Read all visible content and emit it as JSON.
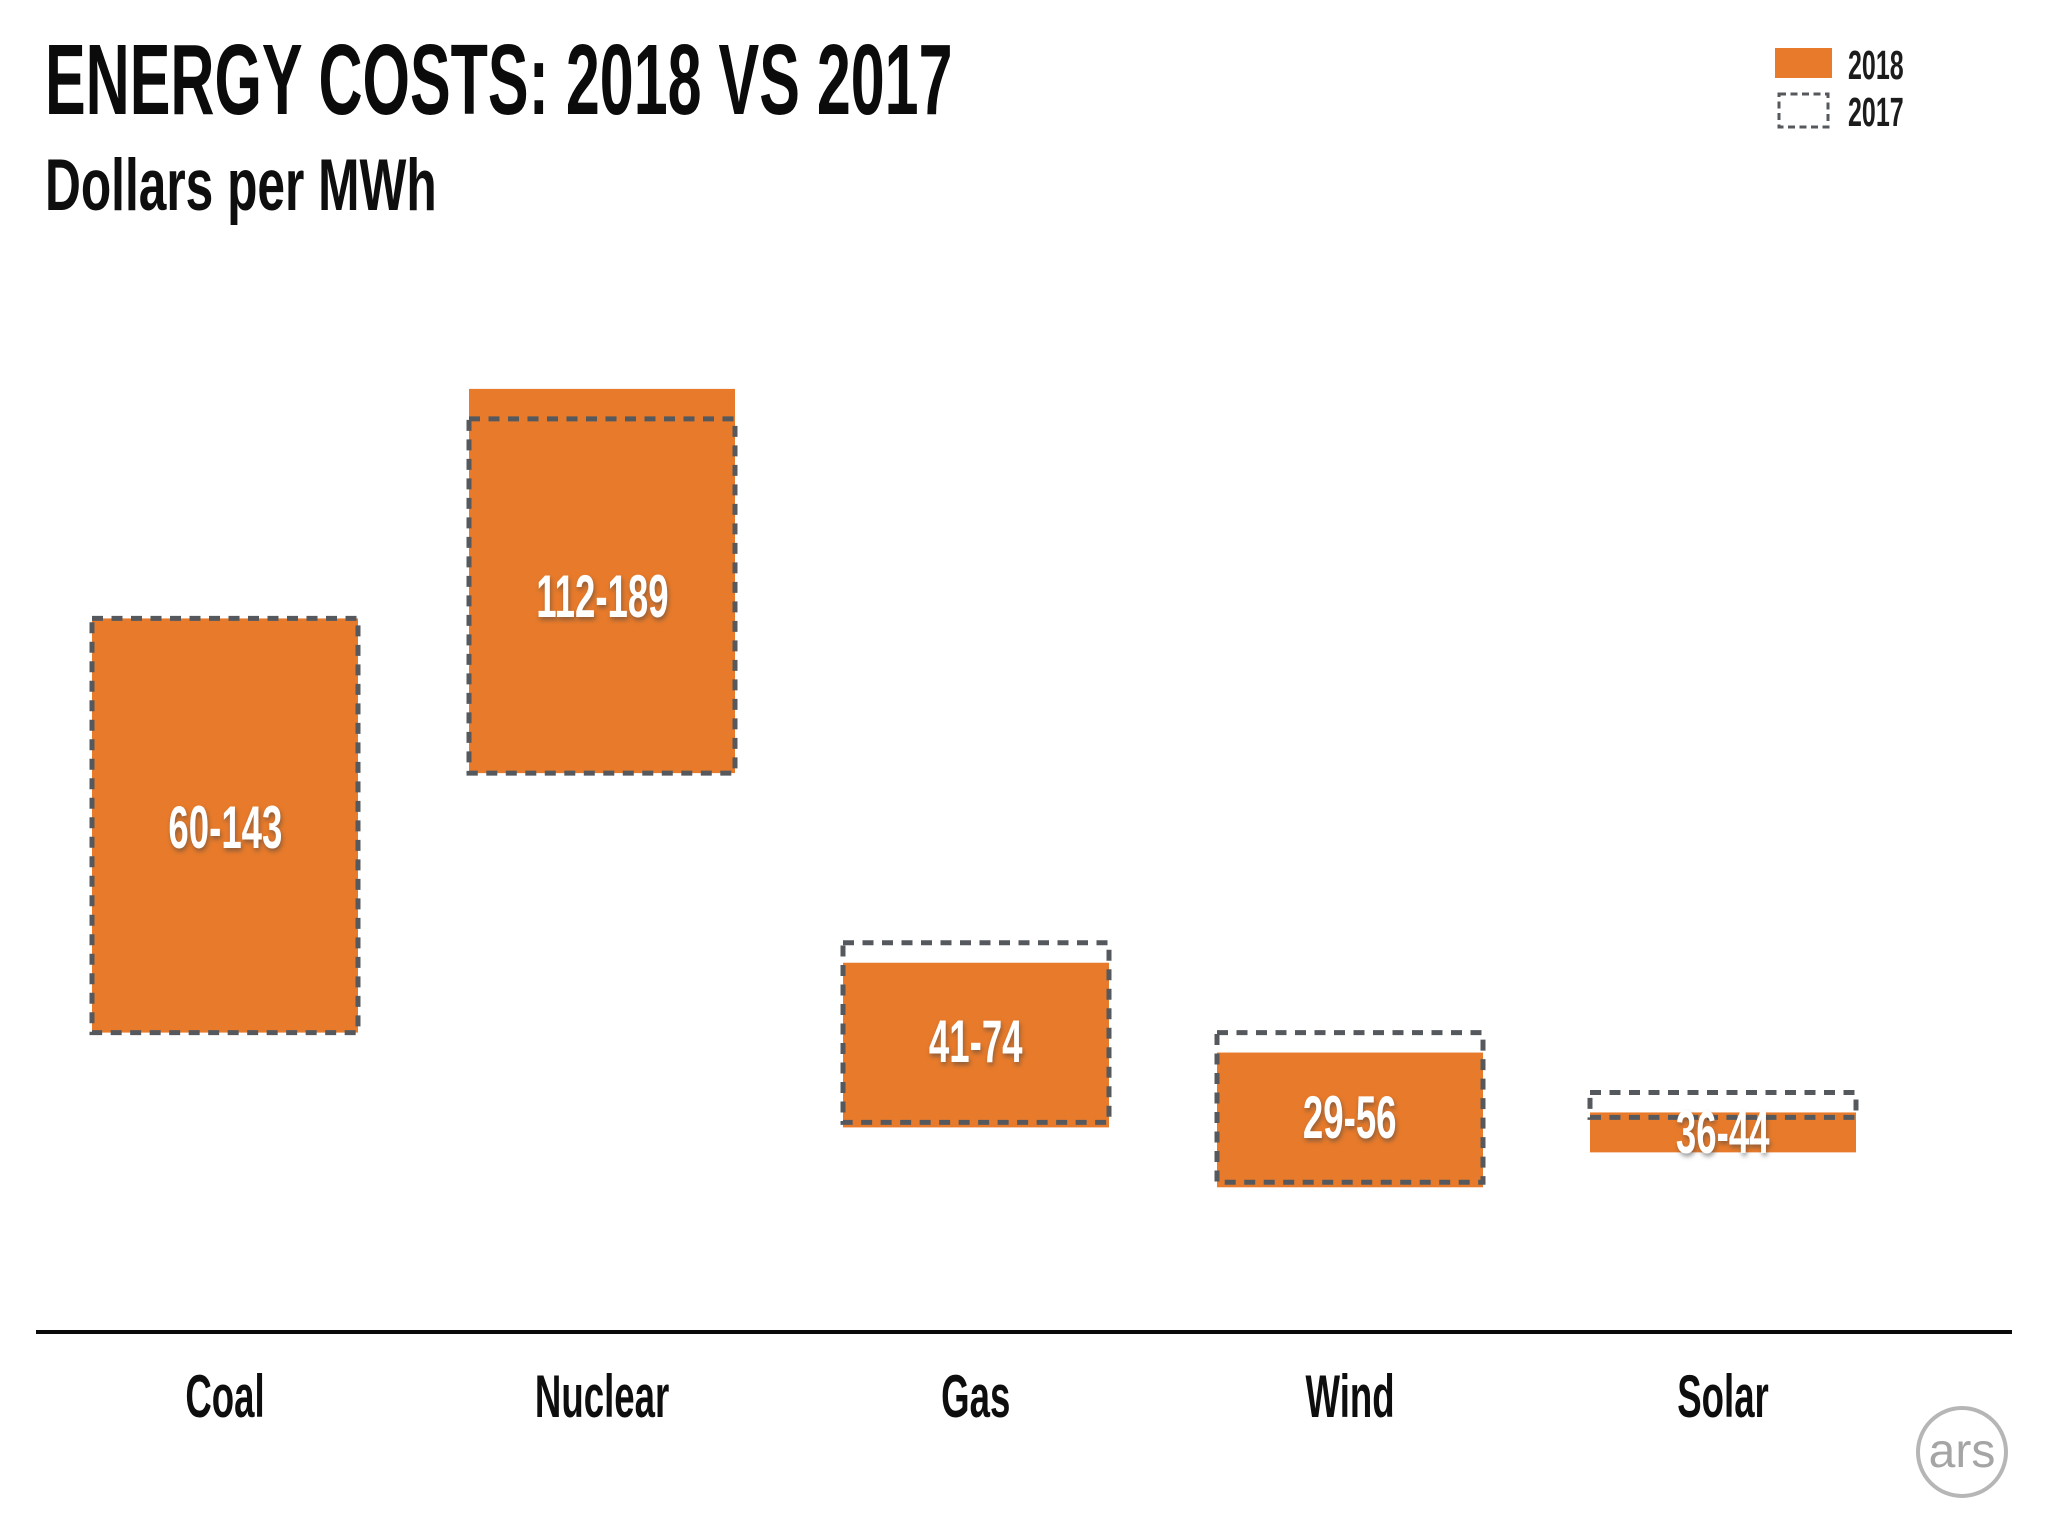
{
  "header": {
    "title": "ENERGY COSTS: 2018 VS 2017",
    "subtitle": "Dollars per MWh"
  },
  "legend": {
    "position": "top-right",
    "items": [
      {
        "label": "2018",
        "style": "filled"
      },
      {
        "label": "2017",
        "style": "dashed"
      }
    ]
  },
  "colors": {
    "bar_fill": "#E87B2B",
    "dash_stroke": "#55595E",
    "axis_line": "#0B0B0B",
    "bar_label_text": "#FFFFFF",
    "background": "#FFFFFF"
  },
  "chart_data": {
    "type": "bar",
    "subtype": "floating-range-bars",
    "title": "ENERGY COSTS: 2018 VS 2017",
    "ylabel": "Dollars per MWh",
    "xlabel": "",
    "ylim": [
      0,
      200
    ],
    "grid": false,
    "legend_position": "top-right",
    "categories": [
      "Coal",
      "Nuclear",
      "Gas",
      "Wind",
      "Solar"
    ],
    "series": [
      {
        "name": "2018",
        "style": "filled",
        "ranges": [
          [
            60,
            143
          ],
          [
            112,
            189
          ],
          [
            41,
            74
          ],
          [
            29,
            56
          ],
          [
            36,
            44
          ]
        ]
      },
      {
        "name": "2017",
        "style": "dashed",
        "ranges": [
          [
            60,
            143
          ],
          [
            112,
            183
          ],
          [
            42,
            78
          ],
          [
            30,
            60
          ],
          [
            43,
            48
          ]
        ]
      }
    ],
    "bar_labels": [
      "60-143",
      "112-189",
      "41-74",
      "29-56",
      "36-44"
    ]
  },
  "footer": {
    "logo_text": "ars"
  }
}
